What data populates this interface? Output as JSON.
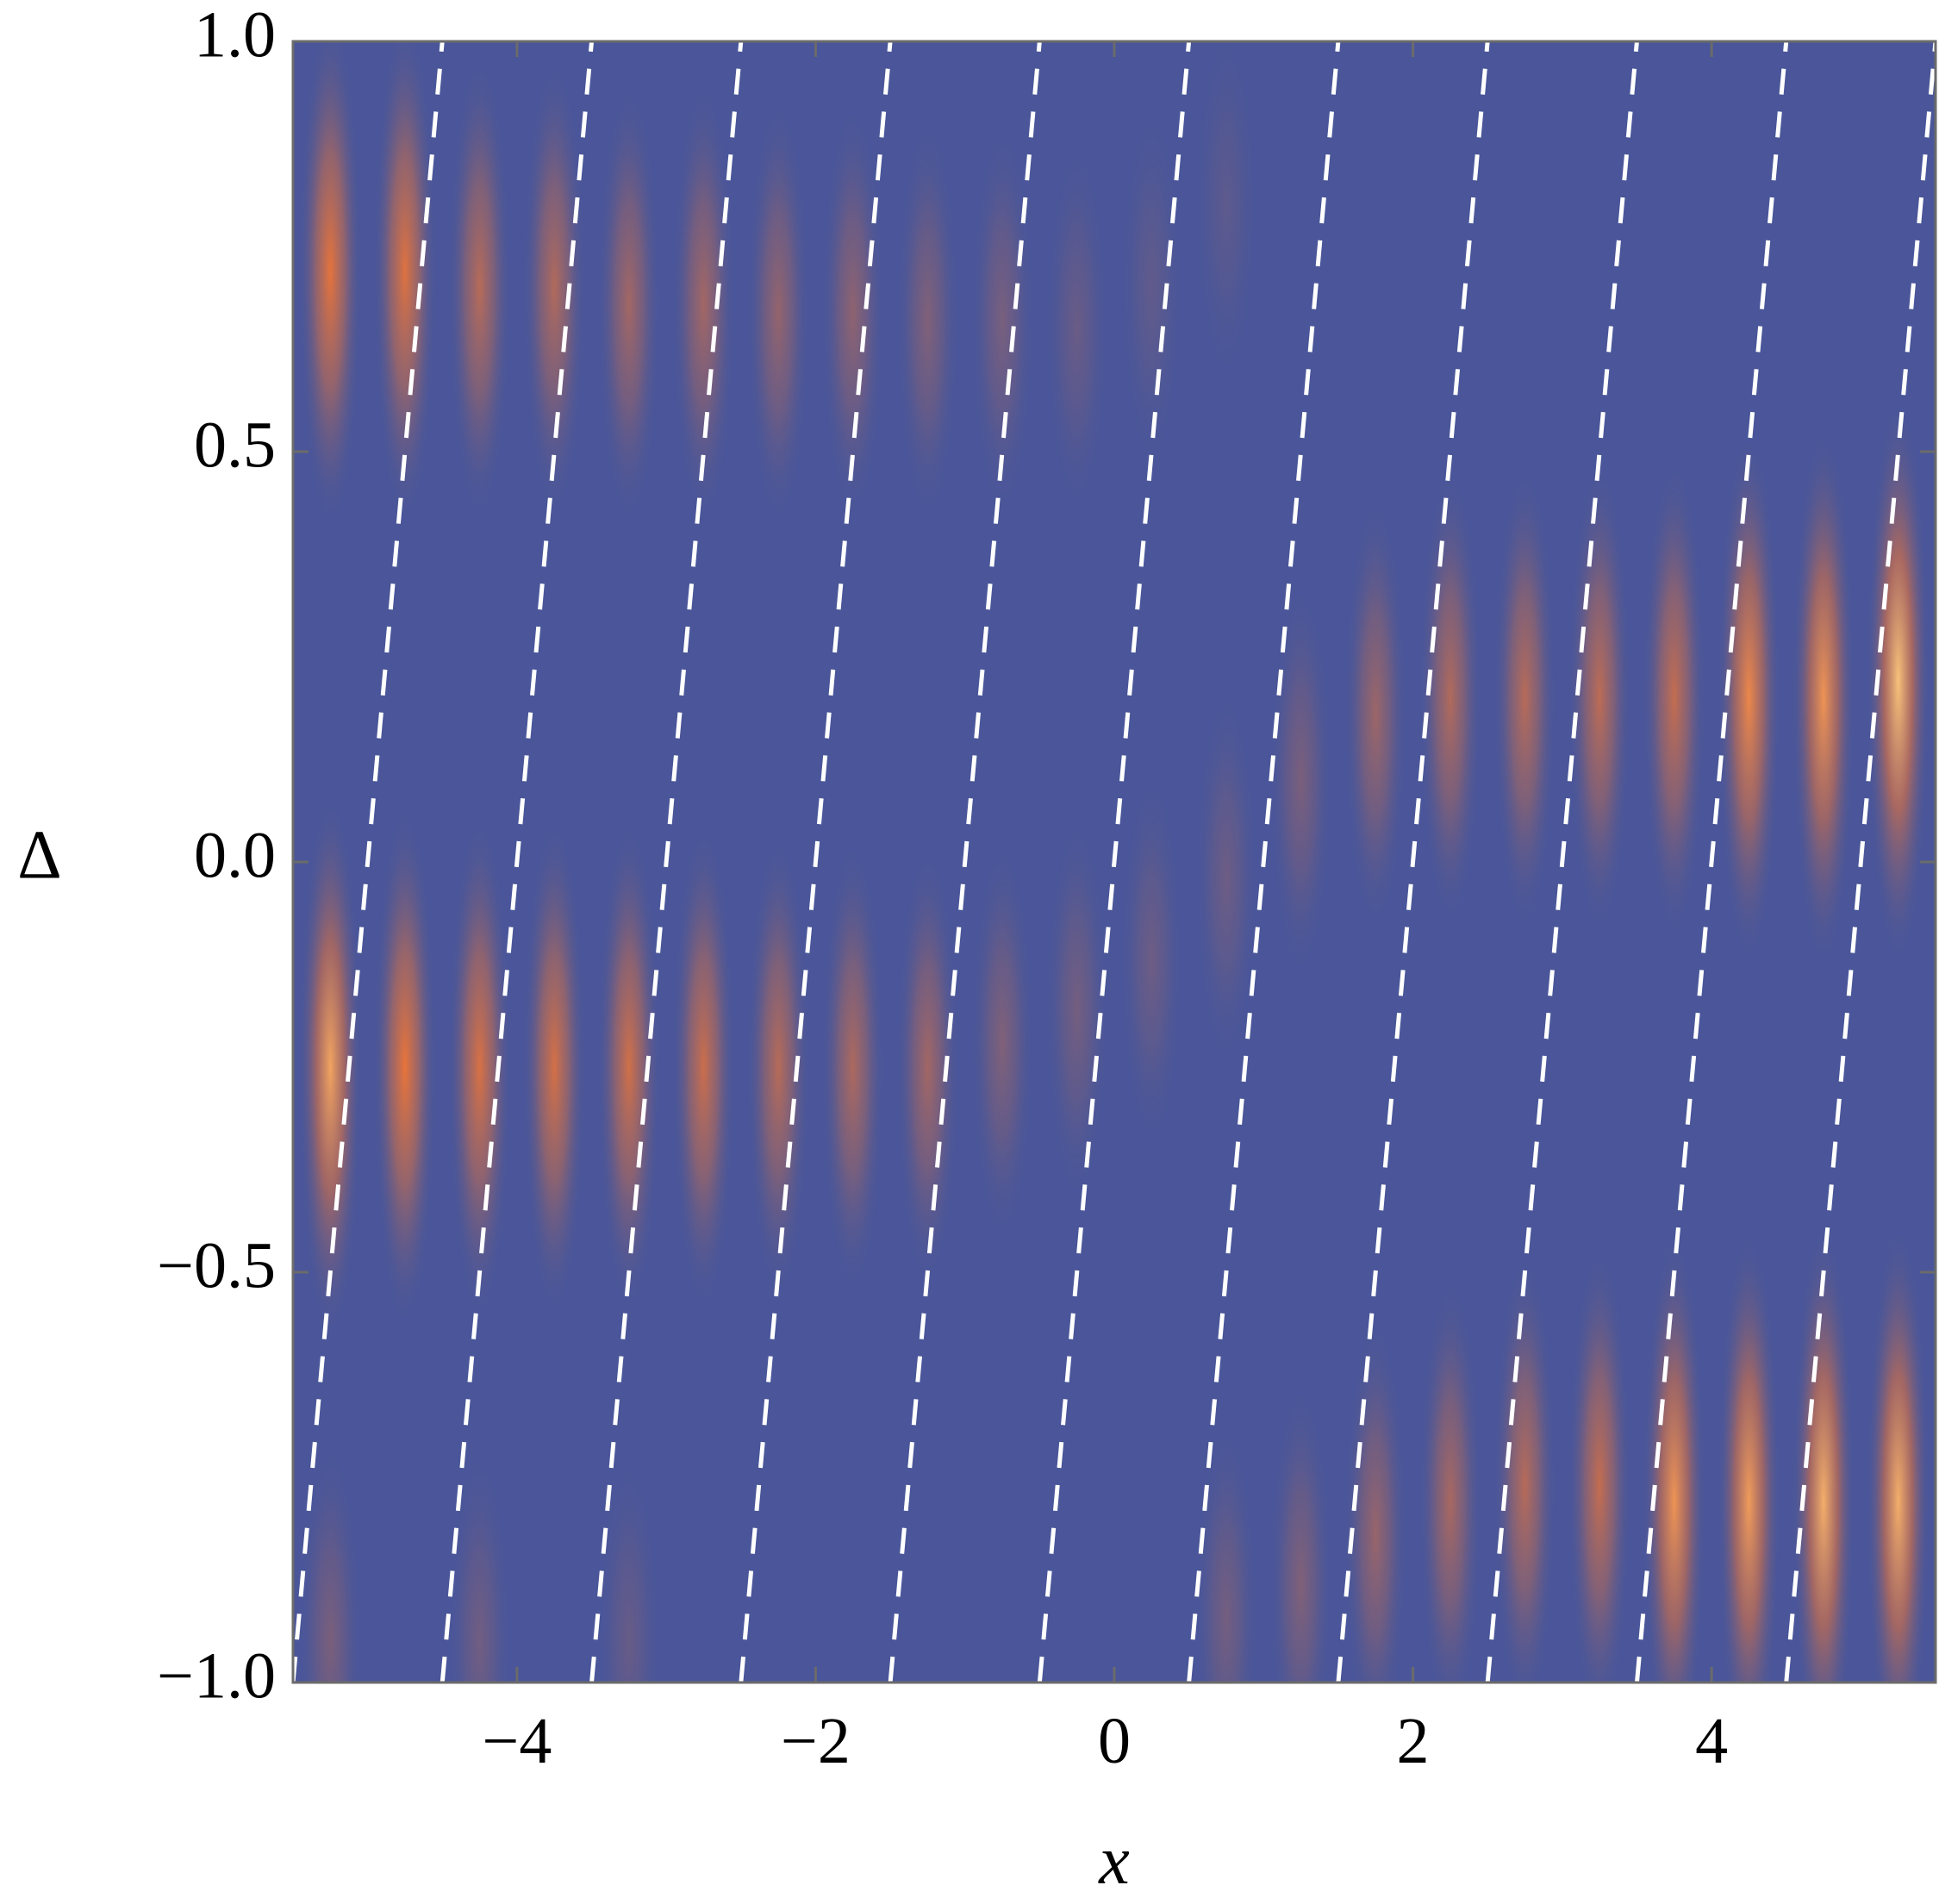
{
  "chart_data": {
    "type": "heatmap",
    "xlabel": "x",
    "ylabel": "Δ",
    "xlim": [
      -5.5,
      5.5
    ],
    "ylim": [
      -1.0,
      1.0
    ],
    "x_ticks": [
      -4,
      -2,
      0,
      2,
      4
    ],
    "x_tick_labels": [
      "−4",
      "−2",
      "0",
      "2",
      "4"
    ],
    "y_ticks": [
      -1.0,
      -0.5,
      0.0,
      0.5,
      1.0
    ],
    "y_tick_labels": [
      "−1.0",
      "−0.5",
      "0.0",
      "0.5",
      "1.0"
    ],
    "grid": false,
    "legend": "none",
    "colormap": {
      "low": "#4a5699",
      "mid": "#e8743a",
      "high": "#f7c27a"
    },
    "fringe_spacing_x": 0.5,
    "blobs": [
      {
        "x": -5.25,
        "y": 0.72,
        "intensity": 0.78
      },
      {
        "x": -4.75,
        "y": 0.72,
        "intensity": 0.75
      },
      {
        "x": -4.25,
        "y": 0.7,
        "intensity": 0.55
      },
      {
        "x": -3.75,
        "y": 0.7,
        "intensity": 0.52
      },
      {
        "x": -3.25,
        "y": 0.68,
        "intensity": 0.45
      },
      {
        "x": -2.75,
        "y": 0.68,
        "intensity": 0.45
      },
      {
        "x": -2.25,
        "y": 0.67,
        "intensity": 0.38
      },
      {
        "x": -1.75,
        "y": 0.67,
        "intensity": 0.35
      },
      {
        "x": -1.25,
        "y": 0.66,
        "intensity": 0.28
      },
      {
        "x": -0.75,
        "y": 0.66,
        "intensity": 0.24
      },
      {
        "x": -0.25,
        "y": 0.65,
        "intensity": 0.16
      },
      {
        "x": 0.25,
        "y": 0.7,
        "intensity": 0.12
      },
      {
        "x": 0.75,
        "y": 0.8,
        "intensity": 0.1
      },
      {
        "x": -5.25,
        "y": -0.25,
        "intensity": 0.92
      },
      {
        "x": -4.75,
        "y": -0.25,
        "intensity": 0.8
      },
      {
        "x": -4.25,
        "y": -0.25,
        "intensity": 0.72
      },
      {
        "x": -3.75,
        "y": -0.25,
        "intensity": 0.7
      },
      {
        "x": -3.25,
        "y": -0.25,
        "intensity": 0.68
      },
      {
        "x": -2.75,
        "y": -0.25,
        "intensity": 0.65
      },
      {
        "x": -2.25,
        "y": -0.25,
        "intensity": 0.55
      },
      {
        "x": -1.75,
        "y": -0.25,
        "intensity": 0.5
      },
      {
        "x": -1.25,
        "y": -0.25,
        "intensity": 0.45
      },
      {
        "x": -0.75,
        "y": -0.22,
        "intensity": 0.28
      },
      {
        "x": -0.25,
        "y": -0.18,
        "intensity": 0.22
      },
      {
        "x": 0.25,
        "y": -0.12,
        "intensity": 0.18
      },
      {
        "x": 0.75,
        "y": -0.02,
        "intensity": 0.18
      },
      {
        "x": 1.25,
        "y": 0.1,
        "intensity": 0.25
      },
      {
        "x": 1.75,
        "y": 0.18,
        "intensity": 0.42
      },
      {
        "x": 2.25,
        "y": 0.2,
        "intensity": 0.52
      },
      {
        "x": 2.75,
        "y": 0.2,
        "intensity": 0.55
      },
      {
        "x": 3.25,
        "y": 0.2,
        "intensity": 0.58
      },
      {
        "x": 3.75,
        "y": 0.2,
        "intensity": 0.62
      },
      {
        "x": 4.25,
        "y": 0.2,
        "intensity": 0.85
      },
      {
        "x": 4.75,
        "y": 0.2,
        "intensity": 0.88
      },
      {
        "x": 5.25,
        "y": 0.22,
        "intensity": 1.0
      },
      {
        "x": 0.75,
        "y": -0.92,
        "intensity": 0.22
      },
      {
        "x": 1.25,
        "y": -0.88,
        "intensity": 0.28
      },
      {
        "x": 1.75,
        "y": -0.82,
        "intensity": 0.4
      },
      {
        "x": 2.25,
        "y": -0.78,
        "intensity": 0.48
      },
      {
        "x": 2.75,
        "y": -0.76,
        "intensity": 0.55
      },
      {
        "x": 3.25,
        "y": -0.76,
        "intensity": 0.62
      },
      {
        "x": 3.75,
        "y": -0.78,
        "intensity": 0.88
      },
      {
        "x": 4.25,
        "y": -0.78,
        "intensity": 0.9
      },
      {
        "x": 4.75,
        "y": -0.78,
        "intensity": 0.95
      },
      {
        "x": 5.25,
        "y": -0.78,
        "intensity": 0.95
      },
      {
        "x": -5.25,
        "y": -0.95,
        "intensity": 0.25
      },
      {
        "x": -4.25,
        "y": -0.95,
        "intensity": 0.2
      },
      {
        "x": -3.25,
        "y": -0.95,
        "intensity": 0.15
      }
    ],
    "dashed_lines": {
      "color": "#ffffff",
      "x_at_y_minus1": [
        -5.5,
        -4.5,
        -3.5,
        -2.5,
        -1.5,
        -0.5,
        0.5,
        1.5,
        2.5,
        3.5,
        4.5
      ],
      "x_at_y_plus1": [
        -4.5,
        -3.5,
        -2.5,
        -1.5,
        -0.5,
        0.5,
        1.5,
        2.5,
        3.5,
        4.5,
        5.5
      ]
    }
  }
}
